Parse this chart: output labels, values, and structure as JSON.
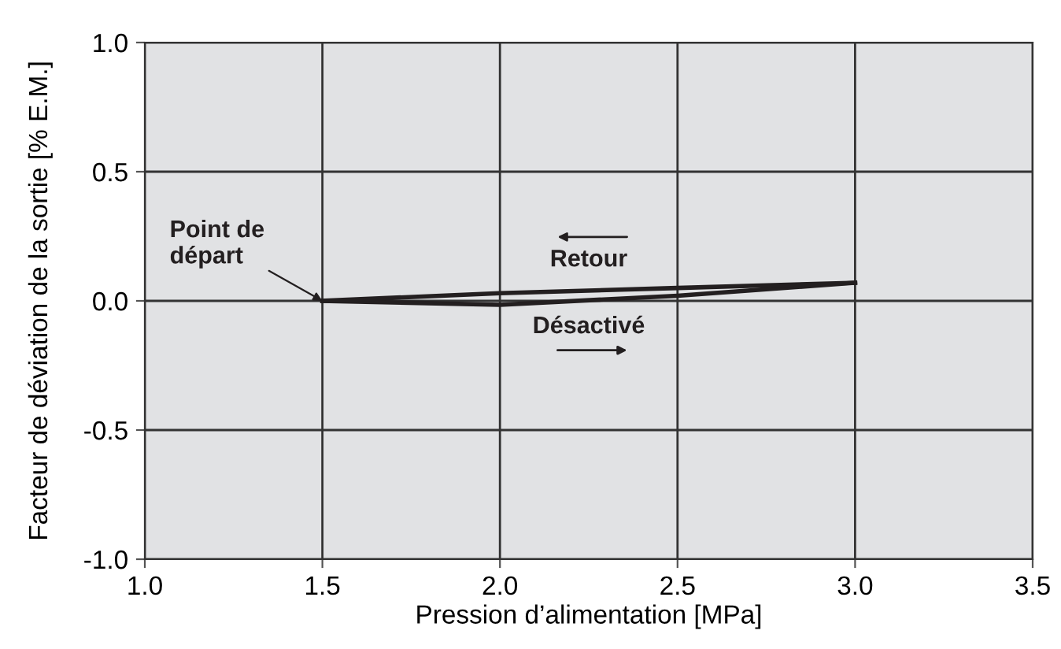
{
  "chart_data": {
    "type": "line",
    "xlabel": "Pression d’alimentation [MPa]",
    "ylabel": "Facteur de déviation de la sortie [% E.M.]",
    "series": [
      {
        "name": "Désactivé",
        "color": "#231f20",
        "x": [
          1.5,
          2.0,
          2.5,
          3.0
        ],
        "values": [
          0.0,
          -0.015,
          0.02,
          0.07
        ]
      },
      {
        "name": "Retour",
        "color": "#231f20",
        "x": [
          3.0,
          2.5,
          2.0,
          1.5
        ],
        "values": [
          0.07,
          0.05,
          0.03,
          0.0
        ]
      }
    ],
    "annotations": [
      {
        "text": "Point de\ndépart",
        "x": 1.5,
        "y": 0.0
      }
    ],
    "xlim": [
      1.0,
      3.5
    ],
    "xticks": [
      {
        "value": 1.0,
        "label": "1.0"
      },
      {
        "value": 1.5,
        "label": "1.5"
      },
      {
        "value": 2.0,
        "label": "2.0"
      },
      {
        "value": 2.5,
        "label": "2.5"
      },
      {
        "value": 3.0,
        "label": "3.0"
      },
      {
        "value": 3.5,
        "label": "3.5"
      }
    ],
    "ylim": [
      -1.0,
      1.0
    ],
    "yticks": [
      {
        "value": -1.0,
        "label": "-1.0"
      },
      {
        "value": -0.5,
        "label": "-0.5"
      },
      {
        "value": 0.0,
        "label": "0.0"
      },
      {
        "value": 0.5,
        "label": "0.5"
      },
      {
        "value": 1.0,
        "label": "1.0"
      }
    ],
    "grid": true,
    "marker": "none",
    "line_style": "solid"
  }
}
